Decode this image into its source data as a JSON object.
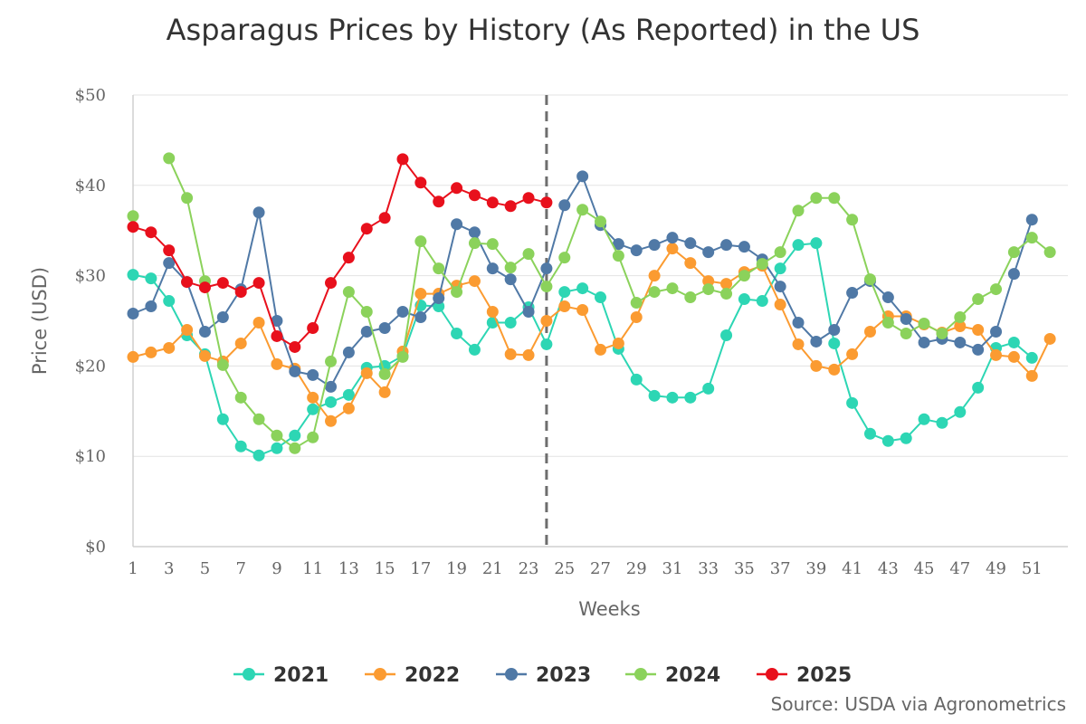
{
  "chart_data": {
    "type": "line",
    "title": "Asparagus Prices by History (As Reported) in the US",
    "xlabel": "Weeks",
    "ylabel": "Price (USD)",
    "ylim": [
      0,
      50
    ],
    "xlim": [
      1,
      53
    ],
    "y_ticks": [
      "$0",
      "$10",
      "$20",
      "$30",
      "$40",
      "$50"
    ],
    "y_tick_values": [
      0,
      10,
      20,
      30,
      40,
      50
    ],
    "x_ticks": [
      "1",
      "3",
      "5",
      "7",
      "9",
      "11",
      "13",
      "15",
      "17",
      "19",
      "21",
      "23",
      "25",
      "27",
      "29",
      "31",
      "33",
      "35",
      "37",
      "39",
      "41",
      "43",
      "45",
      "47",
      "49",
      "51"
    ],
    "grid": "horizontal",
    "legend_position": "bottom",
    "reference_line": {
      "x": 24,
      "style": "dashed"
    },
    "source": "Source: USDA via Agronometrics",
    "series": [
      {
        "name": "2021",
        "color": "#2dd6b4",
        "x": [
          1,
          2,
          3,
          4,
          5,
          6,
          7,
          8,
          9,
          10,
          11,
          12,
          13,
          14,
          15,
          16,
          17,
          18,
          19,
          20,
          21,
          22,
          23,
          24,
          25,
          26,
          27,
          28,
          29,
          30,
          31,
          32,
          33,
          34,
          35,
          36,
          37,
          38,
          39,
          40,
          41,
          42,
          43,
          44,
          45,
          46,
          47,
          48,
          49,
          50,
          51,
          52
        ],
        "y": [
          30.1,
          29.7,
          27.2,
          23.4,
          21.3,
          14.1,
          11.1,
          10.1,
          10.9,
          12.3,
          15.2,
          16.0,
          16.8,
          19.8,
          20.0,
          21.1,
          26.7,
          26.6,
          23.6,
          21.8,
          24.8,
          24.8,
          26.5,
          22.4,
          28.2,
          28.6,
          27.6,
          21.9,
          18.5,
          16.7,
          16.5,
          16.5,
          17.5,
          23.4,
          27.4,
          27.2,
          30.8,
          33.4,
          33.6,
          22.5,
          15.9,
          12.5,
          11.7,
          12.0,
          14.1,
          13.7,
          14.9,
          17.6,
          22.0,
          22.6,
          20.9,
          null
        ]
      },
      {
        "name": "2022",
        "color": "#fb9b31",
        "x": [
          1,
          2,
          3,
          4,
          5,
          6,
          7,
          8,
          9,
          10,
          11,
          12,
          13,
          14,
          15,
          16,
          17,
          18,
          19,
          20,
          21,
          22,
          23,
          24,
          25,
          26,
          27,
          28,
          29,
          30,
          31,
          32,
          33,
          34,
          35,
          36,
          37,
          38,
          39,
          40,
          41,
          42,
          43,
          44,
          45,
          46,
          47,
          48,
          49,
          50,
          51,
          52
        ],
        "y": [
          21.0,
          21.5,
          22.0,
          24.0,
          21.1,
          20.5,
          22.5,
          24.8,
          20.2,
          19.7,
          16.5,
          13.9,
          15.3,
          19.2,
          17.1,
          21.6,
          28.0,
          28.0,
          28.9,
          29.4,
          26.0,
          21.3,
          21.2,
          25.0,
          26.6,
          26.2,
          21.8,
          22.5,
          25.4,
          30.0,
          33.0,
          31.4,
          29.4,
          29.1,
          30.4,
          31.1,
          26.8,
          22.4,
          20.0,
          19.6,
          21.3,
          23.8,
          25.5,
          25.5,
          24.6,
          23.7,
          24.4,
          24.0,
          21.2,
          21.0,
          18.9,
          23.0
        ]
      },
      {
        "name": "2023",
        "color": "#5079a6",
        "x": [
          1,
          2,
          3,
          4,
          5,
          6,
          7,
          8,
          9,
          10,
          11,
          12,
          13,
          14,
          15,
          16,
          17,
          18,
          19,
          20,
          21,
          22,
          23,
          24,
          25,
          26,
          27,
          28,
          29,
          30,
          31,
          32,
          33,
          34,
          35,
          36,
          37,
          38,
          39,
          40,
          41,
          42,
          43,
          44,
          45,
          46,
          47,
          48,
          49,
          50,
          51,
          52
        ],
        "y": [
          25.8,
          26.6,
          31.4,
          29.3,
          23.8,
          25.4,
          28.5,
          37.0,
          25.0,
          19.4,
          19.0,
          17.7,
          21.5,
          23.8,
          24.2,
          26.0,
          25.4,
          27.5,
          35.7,
          34.8,
          30.8,
          29.6,
          26.0,
          30.8,
          37.8,
          41.0,
          35.6,
          33.5,
          32.8,
          33.4,
          34.2,
          33.6,
          32.6,
          33.4,
          33.2,
          31.8,
          28.8,
          24.8,
          22.7,
          24.0,
          28.1,
          29.4,
          27.6,
          25.2,
          22.6,
          23.0,
          22.6,
          21.8,
          23.8,
          30.2,
          36.2,
          null
        ]
      },
      {
        "name": "2024",
        "color": "#8bd25b",
        "x": [
          1,
          2,
          3,
          4,
          5,
          6,
          7,
          8,
          9,
          10,
          11,
          12,
          13,
          14,
          15,
          16,
          17,
          18,
          19,
          20,
          21,
          22,
          23,
          24,
          25,
          26,
          27,
          28,
          29,
          30,
          31,
          32,
          33,
          34,
          35,
          36,
          37,
          38,
          39,
          40,
          41,
          42,
          43,
          44,
          45,
          46,
          47,
          48,
          49,
          50,
          51,
          52
        ],
        "y": [
          36.6,
          null,
          43.0,
          38.6,
          29.4,
          20.1,
          16.5,
          14.1,
          12.3,
          10.9,
          12.1,
          20.5,
          28.2,
          26.0,
          19.1,
          21.0,
          33.8,
          30.8,
          28.2,
          33.6,
          33.5,
          30.9,
          32.4,
          28.8,
          32.0,
          37.3,
          36.0,
          32.2,
          27.0,
          28.2,
          28.6,
          27.6,
          28.5,
          28.0,
          30.0,
          31.3,
          32.6,
          37.2,
          38.6,
          38.6,
          36.2,
          29.6,
          24.8,
          23.6,
          24.7,
          23.6,
          25.4,
          27.4,
          28.5,
          32.6,
          34.2,
          32.6
        ]
      },
      {
        "name": "2025",
        "color": "#e8101c",
        "x": [
          1,
          2,
          3,
          4,
          5,
          6,
          7,
          8,
          9,
          10,
          11,
          12,
          13,
          14,
          15,
          16,
          17,
          18,
          19,
          20,
          21,
          22,
          23,
          24
        ],
        "y": [
          35.4,
          34.8,
          32.8,
          29.3,
          28.7,
          29.2,
          28.2,
          29.2,
          23.3,
          22.1,
          24.2,
          29.2,
          32.0,
          35.2,
          36.4,
          42.9,
          40.3,
          38.2,
          39.7,
          38.9,
          38.1,
          37.7,
          38.6,
          38.1
        ]
      }
    ]
  }
}
